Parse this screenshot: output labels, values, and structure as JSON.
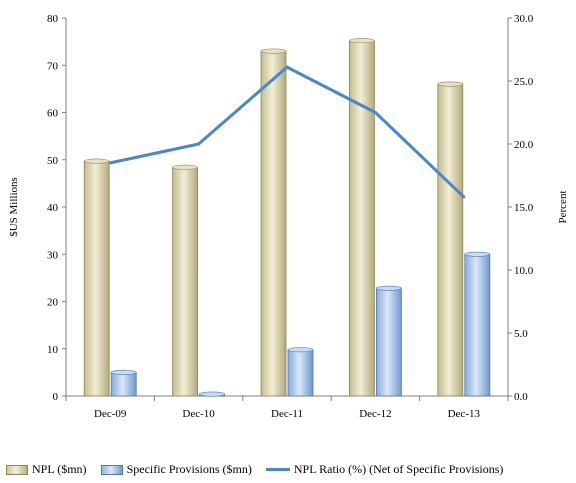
{
  "chart_data": {
    "type": "bar",
    "categories": [
      "Dec-09",
      "Dec-10",
      "Dec-11",
      "Dec-12",
      "Dec-13"
    ],
    "series": [
      {
        "name": "NPL ($mn)",
        "type": "bar",
        "axis": "left",
        "values": [
          49.7,
          48.4,
          73.0,
          75.2,
          66.0
        ]
      },
      {
        "name": "Specific Provisions ($mn)",
        "type": "bar",
        "axis": "left",
        "values": [
          5.0,
          0.4,
          9.8,
          22.8,
          30.0
        ]
      },
      {
        "name": "NPL Ratio (%) (Net of Specific Provisions)",
        "type": "line",
        "axis": "right",
        "values": [
          18.5,
          20.0,
          26.1,
          22.5,
          15.8
        ]
      }
    ],
    "ylabel": "$US Millions",
    "y2label": "Percent",
    "ylim": [
      0,
      80
    ],
    "y2lim": [
      0,
      30
    ],
    "yticks": [
      "0",
      "10",
      "20",
      "30",
      "40",
      "50",
      "60",
      "70",
      "80"
    ],
    "y2ticks": [
      "0.0",
      "5.0",
      "10.0",
      "15.0",
      "20.0",
      "25.0",
      "30.0"
    ],
    "grid": false,
    "legend_position": "bottom",
    "colors": {
      "npl": "#d6cfa8",
      "provisions": "#9cc0ea",
      "ratio": "#4a86c8"
    }
  },
  "legend": {
    "npl": "NPL ($mn)",
    "provisions": "Specific Provisions ($mn)",
    "ratio": "NPL Ratio (%) (Net of Specific Provisions)"
  }
}
